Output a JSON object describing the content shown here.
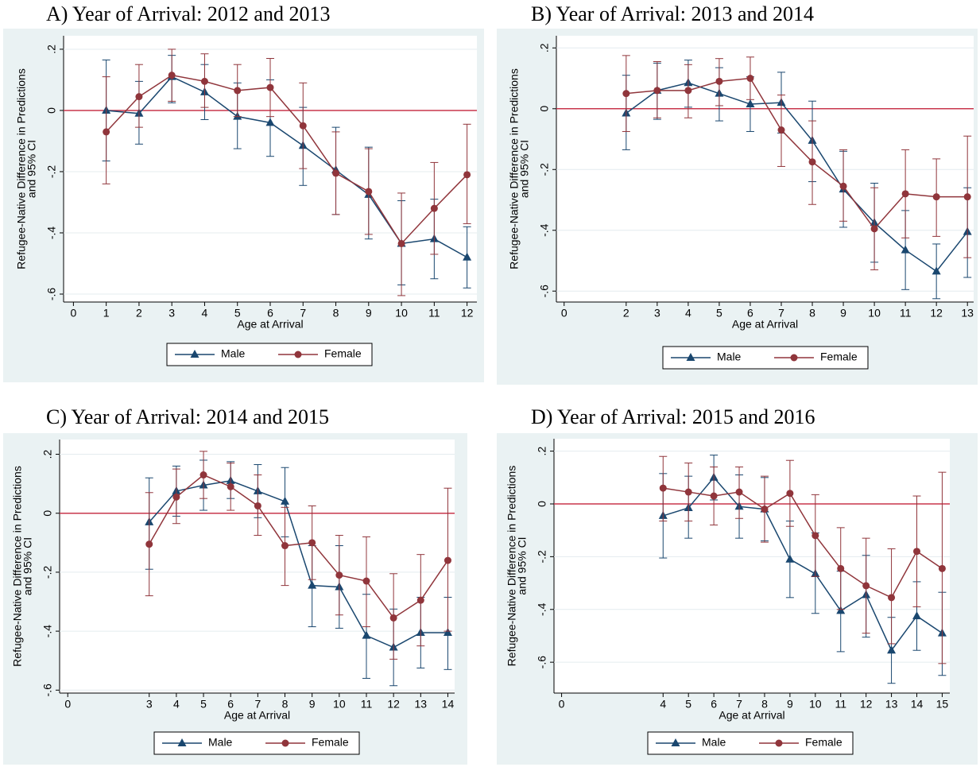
{
  "chart_data": [
    {
      "type": "line",
      "title": "A) Year of Arrival: 2012 and 2013",
      "xlabel": "Age at Arrival",
      "ylabel": [
        "Refugee-Native Difference in Predictions",
        "and 95% CI"
      ],
      "x": [
        1,
        2,
        3,
        4,
        5,
        6,
        7,
        8,
        9,
        10,
        11,
        12
      ],
      "xlim": [
        -0.3,
        12.3
      ],
      "xticks": [
        0,
        1,
        2,
        3,
        4,
        5,
        6,
        7,
        8,
        9,
        10,
        11,
        12
      ],
      "ylim": [
        -0.626,
        0.244
      ],
      "yticks": [
        {
          "value": 0.2,
          "label": ".2"
        },
        0,
        {
          "value": -0.2,
          "label": "-.2"
        },
        {
          "value": -0.4,
          "label": "-.4"
        },
        {
          "value": -0.6,
          "label": "-.6"
        }
      ],
      "grid": true,
      "hline": 0,
      "hline_color": "#c8374c",
      "series": [
        {
          "name": "Male",
          "color": "#1a476f",
          "marker": "triangle",
          "values": [
            0.0,
            -0.01,
            0.11,
            0.06,
            -0.02,
            -0.04,
            -0.115,
            -0.195,
            -0.275,
            -0.435,
            -0.42,
            -0.48
          ],
          "ci_low": [
            -0.165,
            -0.11,
            0.025,
            -0.03,
            -0.125,
            -0.15,
            -0.245,
            -0.34,
            -0.42,
            -0.57,
            -0.55,
            -0.58
          ],
          "ci_high": [
            0.165,
            0.095,
            0.18,
            0.15,
            0.09,
            0.1,
            0.01,
            -0.055,
            -0.12,
            -0.295,
            -0.29,
            -0.38
          ]
        },
        {
          "name": "Female",
          "color": "#90353b",
          "marker": "circle",
          "values": [
            -0.07,
            0.045,
            0.115,
            0.095,
            0.065,
            0.075,
            -0.05,
            -0.205,
            -0.265,
            -0.435,
            -0.32,
            -0.21
          ],
          "ci_low": [
            -0.24,
            -0.055,
            0.03,
            0.01,
            -0.02,
            -0.02,
            -0.19,
            -0.34,
            -0.405,
            -0.605,
            -0.47,
            -0.37
          ],
          "ci_high": [
            0.11,
            0.15,
            0.2,
            0.185,
            0.15,
            0.17,
            0.09,
            -0.07,
            -0.125,
            -0.27,
            -0.17,
            -0.045
          ]
        }
      ]
    },
    {
      "type": "line",
      "title": "B) Year of Arrival: 2013 and 2014",
      "xlabel": "Age at Arrival",
      "ylabel": [
        "Refugee-Native Difference in Predictions",
        "and 95% CI"
      ],
      "x": [
        2,
        3,
        4,
        5,
        6,
        7,
        8,
        9,
        10,
        11,
        12,
        13
      ],
      "xlim": [
        -0.25,
        13.2
      ],
      "xticks": [
        0,
        2,
        3,
        4,
        5,
        6,
        7,
        8,
        9,
        10,
        11,
        12,
        13
      ],
      "ylim": [
        -0.636,
        0.24
      ],
      "yticks": [
        {
          "value": 0.2,
          "label": ".2"
        },
        0,
        {
          "value": -0.2,
          "label": "-.2"
        },
        {
          "value": -0.4,
          "label": "-.4"
        },
        {
          "value": -0.6,
          "label": "-.6"
        }
      ],
      "grid": true,
      "hline": 0,
      "hline_color": "#c8374c",
      "series": [
        {
          "name": "Male",
          "color": "#1a476f",
          "marker": "triangle",
          "values": [
            -0.015,
            0.06,
            0.085,
            0.05,
            0.015,
            0.02,
            -0.105,
            -0.265,
            -0.375,
            -0.465,
            -0.535,
            -0.405
          ],
          "ci_low": [
            -0.135,
            -0.035,
            0.005,
            -0.04,
            -0.075,
            -0.08,
            -0.24,
            -0.39,
            -0.505,
            -0.595,
            -0.625,
            -0.555
          ],
          "ci_high": [
            0.11,
            0.15,
            0.16,
            0.135,
            0.105,
            0.12,
            0.025,
            -0.14,
            -0.245,
            -0.335,
            -0.445,
            -0.26
          ]
        },
        {
          "name": "Female",
          "color": "#90353b",
          "marker": "circle",
          "values": [
            0.05,
            0.06,
            0.06,
            0.09,
            0.1,
            -0.07,
            -0.175,
            -0.255,
            -0.395,
            -0.28,
            -0.29,
            -0.29
          ],
          "ci_low": [
            -0.075,
            -0.03,
            -0.03,
            0.01,
            0.03,
            -0.19,
            -0.315,
            -0.37,
            -0.53,
            -0.425,
            -0.42,
            -0.49
          ],
          "ci_high": [
            0.175,
            0.155,
            0.145,
            0.165,
            0.17,
            0.045,
            -0.04,
            -0.135,
            -0.26,
            -0.135,
            -0.165,
            -0.09
          ]
        }
      ]
    },
    {
      "type": "line",
      "title": "C) Year of Arrival: 2014 and 2015",
      "xlabel": "Age at Arrival",
      "ylabel": [
        "Refugee-Native Difference in Predictions",
        "and 95% CI"
      ],
      "x": [
        3,
        4,
        5,
        6,
        7,
        8,
        9,
        10,
        11,
        12,
        13,
        14
      ],
      "xlim": [
        -0.3,
        14.25
      ],
      "xticks": [
        0,
        3,
        4,
        5,
        6,
        7,
        8,
        9,
        10,
        11,
        12,
        13,
        14
      ],
      "ylim": [
        -0.61,
        0.25
      ],
      "yticks": [
        {
          "value": 0.2,
          "label": ".2"
        },
        0,
        {
          "value": -0.2,
          "label": "-.2"
        },
        {
          "value": -0.4,
          "label": "-.4"
        },
        {
          "value": -0.6,
          "label": "-.6"
        }
      ],
      "grid": true,
      "hline": 0,
      "hline_color": "#c8374c",
      "series": [
        {
          "name": "Male",
          "color": "#1a476f",
          "marker": "triangle",
          "values": [
            -0.03,
            0.075,
            0.095,
            0.11,
            0.075,
            0.04,
            -0.245,
            -0.25,
            -0.415,
            -0.455,
            -0.405,
            -0.405
          ],
          "ci_low": [
            -0.19,
            -0.01,
            0.01,
            0.05,
            -0.015,
            -0.08,
            -0.385,
            -0.39,
            -0.56,
            -0.585,
            -0.525,
            -0.53
          ],
          "ci_high": [
            0.12,
            0.16,
            0.18,
            0.175,
            0.165,
            0.155,
            -0.11,
            -0.11,
            -0.275,
            -0.325,
            -0.285,
            -0.285
          ]
        },
        {
          "name": "Female",
          "color": "#90353b",
          "marker": "circle",
          "values": [
            -0.105,
            0.055,
            0.13,
            0.09,
            0.025,
            -0.11,
            -0.1,
            -0.21,
            -0.23,
            -0.355,
            -0.295,
            -0.16
          ],
          "ci_low": [
            -0.28,
            -0.035,
            0.05,
            0.01,
            -0.075,
            -0.245,
            -0.225,
            -0.345,
            -0.385,
            -0.495,
            -0.45,
            -0.4
          ],
          "ci_high": [
            0.07,
            0.15,
            0.21,
            0.17,
            0.13,
            0.02,
            0.025,
            -0.075,
            -0.08,
            -0.205,
            -0.14,
            0.085
          ]
        }
      ]
    },
    {
      "type": "line",
      "title": "D) Year of Arrival: 2015 and 2016",
      "xlabel": "Age at Arrival",
      "ylabel": [
        "Refugee-Native Difference in Predictions",
        "and 95% CI"
      ],
      "x": [
        4,
        5,
        6,
        7,
        8,
        9,
        10,
        11,
        12,
        13,
        14,
        15
      ],
      "xlim": [
        -0.3,
        15.3
      ],
      "xticks": [
        0,
        4,
        5,
        6,
        7,
        8,
        9,
        10,
        11,
        12,
        13,
        14,
        15
      ],
      "ylim": [
        -0.717,
        0.247
      ],
      "yticks": [
        {
          "value": 0.2,
          "label": ".2"
        },
        0,
        {
          "value": -0.2,
          "label": "-.2"
        },
        {
          "value": -0.4,
          "label": "-.4"
        },
        {
          "value": -0.6,
          "label": "-.6"
        }
      ],
      "grid": true,
      "hline": 0,
      "hline_color": "#c8374c",
      "series": [
        {
          "name": "Male",
          "color": "#1a476f",
          "marker": "triangle",
          "values": [
            -0.045,
            -0.015,
            0.1,
            -0.01,
            -0.02,
            -0.21,
            -0.265,
            -0.405,
            -0.345,
            -0.555,
            -0.425,
            -0.49
          ],
          "ci_low": [
            -0.205,
            -0.13,
            0.015,
            -0.13,
            -0.14,
            -0.355,
            -0.415,
            -0.56,
            -0.505,
            -0.68,
            -0.555,
            -0.65
          ],
          "ci_high": [
            0.115,
            0.105,
            0.185,
            0.11,
            0.1,
            -0.065,
            -0.11,
            -0.255,
            -0.195,
            -0.43,
            -0.295,
            -0.335
          ]
        },
        {
          "name": "Female",
          "color": "#90353b",
          "marker": "circle",
          "values": [
            0.06,
            0.045,
            0.03,
            0.045,
            -0.02,
            0.04,
            -0.12,
            -0.245,
            -0.31,
            -0.355,
            -0.18,
            -0.245
          ],
          "ci_low": [
            -0.065,
            -0.065,
            -0.08,
            -0.055,
            -0.145,
            -0.085,
            -0.275,
            -0.4,
            -0.49,
            -0.53,
            -0.39,
            -0.605
          ],
          "ci_high": [
            0.18,
            0.155,
            0.14,
            0.14,
            0.105,
            0.165,
            0.035,
            -0.09,
            -0.13,
            -0.17,
            0.03,
            0.12
          ]
        }
      ]
    }
  ]
}
